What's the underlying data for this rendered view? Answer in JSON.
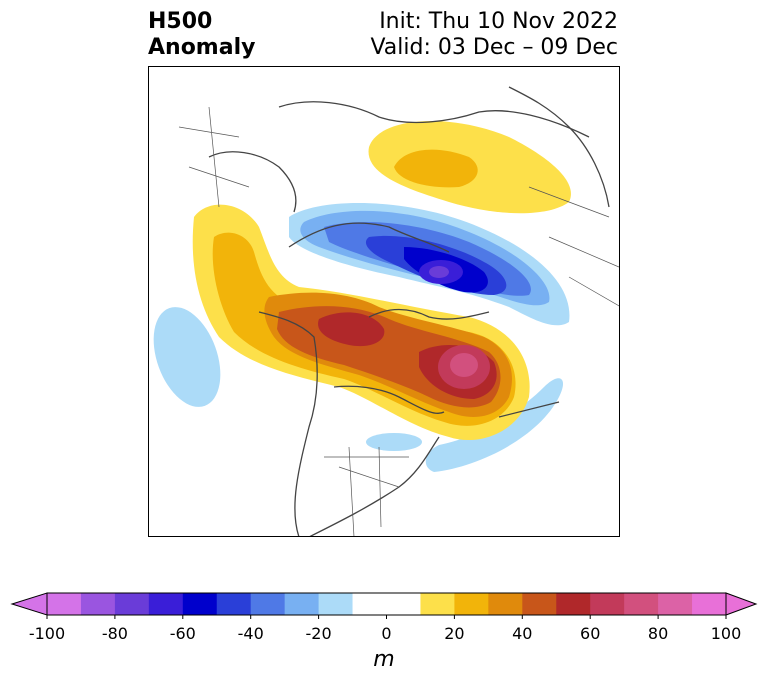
{
  "title": {
    "left_line1": "H500",
    "left_line2": "Anomaly",
    "right_line1": "Init: Thu 10 Nov 2022",
    "right_line2": "Valid: 03 Dec – 09 Dec"
  },
  "colorbar": {
    "unit": "m",
    "range": [
      -100,
      100
    ],
    "step": 10,
    "extend": "both",
    "ticks": [
      "-100",
      "-80",
      "-60",
      "-40",
      "-20",
      "0",
      "20",
      "40",
      "60",
      "80",
      "100"
    ],
    "colors": [
      "#d473e8",
      "#9a55e0",
      "#6a3cd8",
      "#3a1ed8",
      "#0000cc",
      "#2a3fd8",
      "#4f79e6",
      "#78b0f2",
      "#acdbf8",
      "#ffffff",
      "#ffffff",
      "#fde04a",
      "#f2b40a",
      "#e08a0c",
      "#c8561a",
      "#b0282a",
      "#c23a5a",
      "#d2507e",
      "#dc62a6",
      "#e870d8"
    ],
    "neg_end_color": "#d473e8",
    "pos_end_color": "#e870d8"
  },
  "map": {
    "projection": "polar stereographic, North America / Arctic",
    "features": {
      "ridge_alaska_to_hudson_bay": "positive anomaly 60-80 m",
      "trough_siberian_arctic": "negative anomaly -60 m",
      "ridge_northern_russia": "positive anomaly 20 m",
      "weak_trough_pacific": "-20 m",
      "weak_trough_eastern_us_atlantic": "-20 m"
    }
  }
}
